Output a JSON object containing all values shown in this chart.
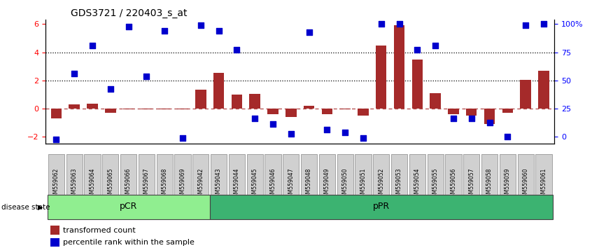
{
  "title": "GDS3721 / 220403_s_at",
  "samples": [
    "GSM559062",
    "GSM559063",
    "GSM559064",
    "GSM559065",
    "GSM559066",
    "GSM559067",
    "GSM559068",
    "GSM559069",
    "GSM559042",
    "GSM559043",
    "GSM559044",
    "GSM559045",
    "GSM559046",
    "GSM559047",
    "GSM559048",
    "GSM559049",
    "GSM559050",
    "GSM559051",
    "GSM559052",
    "GSM559053",
    "GSM559054",
    "GSM559055",
    "GSM559056",
    "GSM559057",
    "GSM559058",
    "GSM559059",
    "GSM559060",
    "GSM559061"
  ],
  "transformed_count": [
    -0.7,
    0.3,
    0.35,
    -0.3,
    -0.05,
    -0.05,
    -0.05,
    -0.05,
    1.35,
    2.55,
    1.0,
    1.05,
    -0.4,
    -0.6,
    0.2,
    -0.4,
    -0.05,
    -0.5,
    4.5,
    5.9,
    3.5,
    1.1,
    -0.4,
    -0.5,
    -1.1,
    -0.3,
    2.05,
    2.7
  ],
  "percentile_rank_left": [
    -2.2,
    2.5,
    4.5,
    1.4,
    5.8,
    2.3,
    5.5,
    -2.1,
    5.9,
    5.5,
    4.2,
    -0.7,
    -1.1,
    -1.8,
    5.4,
    -1.5,
    -1.7,
    -2.1,
    6.0,
    6.0,
    4.2,
    4.5,
    -0.7,
    -0.7,
    -1.0,
    -2.0,
    5.9,
    6.0
  ],
  "pCR_count": 9,
  "pPR_count": 19,
  "bar_color": "#A52A2A",
  "dot_color": "#0000CD",
  "pCR_color": "#90EE90",
  "pPR_color": "#3CB371",
  "ylim": [
    -2.5,
    6.3
  ],
  "yticks_left": [
    -2,
    0,
    2,
    4,
    6
  ],
  "yticks_right_pct": [
    0,
    25,
    50,
    75,
    100
  ],
  "dotted_line_y": [
    2.0,
    4.0
  ],
  "dashed_line_y": 0.0,
  "disease_state_label": "disease state",
  "legend_red": "transformed count",
  "legend_blue": "percentile rank within the sample",
  "bar_width": 0.6,
  "dot_size": 28
}
